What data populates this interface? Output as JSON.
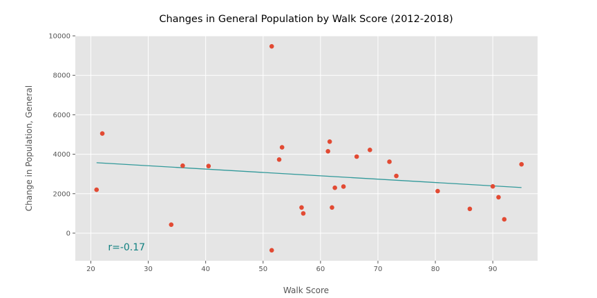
{
  "chart_data": {
    "type": "scatter",
    "title": "Changes in General Population by Walk Score (2012-2018)",
    "xlabel": "Walk Score",
    "ylabel": "Change in Population, General",
    "xlim": [
      17.3,
      97.8
    ],
    "ylim": [
      -1400,
      10000
    ],
    "xticks": [
      20,
      30,
      40,
      50,
      60,
      70,
      80,
      90
    ],
    "yticks": [
      0,
      2000,
      4000,
      6000,
      8000,
      10000
    ],
    "grid": true,
    "points": [
      {
        "x": 21,
        "y": 2200
      },
      {
        "x": 22,
        "y": 5050
      },
      {
        "x": 34,
        "y": 430
      },
      {
        "x": 36,
        "y": 3420
      },
      {
        "x": 40.5,
        "y": 3400
      },
      {
        "x": 51.5,
        "y": 9470
      },
      {
        "x": 51.5,
        "y": -870
      },
      {
        "x": 52.8,
        "y": 3730
      },
      {
        "x": 53.3,
        "y": 4350
      },
      {
        "x": 56.7,
        "y": 1300
      },
      {
        "x": 57,
        "y": 1000
      },
      {
        "x": 61.3,
        "y": 4150
      },
      {
        "x": 61.6,
        "y": 4640
      },
      {
        "x": 62,
        "y": 1300
      },
      {
        "x": 62.5,
        "y": 2300
      },
      {
        "x": 64,
        "y": 2360
      },
      {
        "x": 66.3,
        "y": 3880
      },
      {
        "x": 68.6,
        "y": 4220
      },
      {
        "x": 72,
        "y": 3620
      },
      {
        "x": 73.2,
        "y": 2900
      },
      {
        "x": 80.4,
        "y": 2130
      },
      {
        "x": 86,
        "y": 1230
      },
      {
        "x": 90,
        "y": 2370
      },
      {
        "x": 91,
        "y": 1820
      },
      {
        "x": 92,
        "y": 700
      },
      {
        "x": 95,
        "y": 3490
      }
    ],
    "trendline": {
      "x": [
        21,
        95
      ],
      "y": [
        3570,
        2310
      ]
    },
    "annotation": {
      "text": "r=-0.17",
      "x": 23,
      "y": -700
    },
    "colors": {
      "points": "#E24A33",
      "trendline": "#31999A",
      "annotation": "#108080",
      "plot_background": "#E5E5E5",
      "grid": "#FFFFFF"
    }
  }
}
